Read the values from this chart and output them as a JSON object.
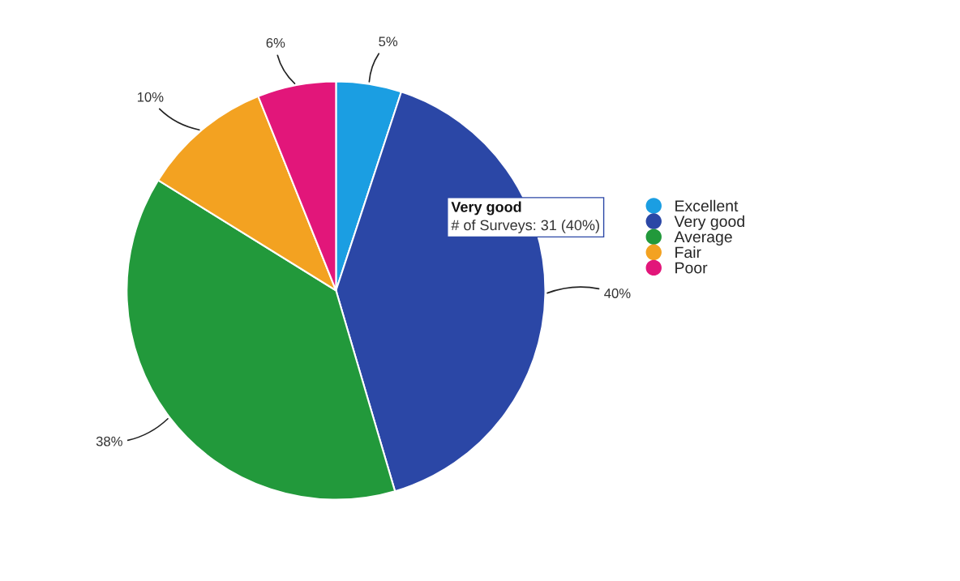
{
  "chart_data": {
    "type": "pie",
    "categories": [
      "Excellent",
      "Very good",
      "Average",
      "Fair",
      "Poor"
    ],
    "values": [
      5,
      40,
      38,
      10,
      6
    ],
    "value_labels": [
      "5%",
      "40%",
      "38%",
      "10%",
      "6%"
    ],
    "colors": [
      "#1b9ee2",
      "#2b47a6",
      "#22993b",
      "#f3a221",
      "#e2167a"
    ],
    "annotations": [
      "Very good",
      "# of Surveys: 31 (40%)"
    ],
    "legend": "right"
  }
}
